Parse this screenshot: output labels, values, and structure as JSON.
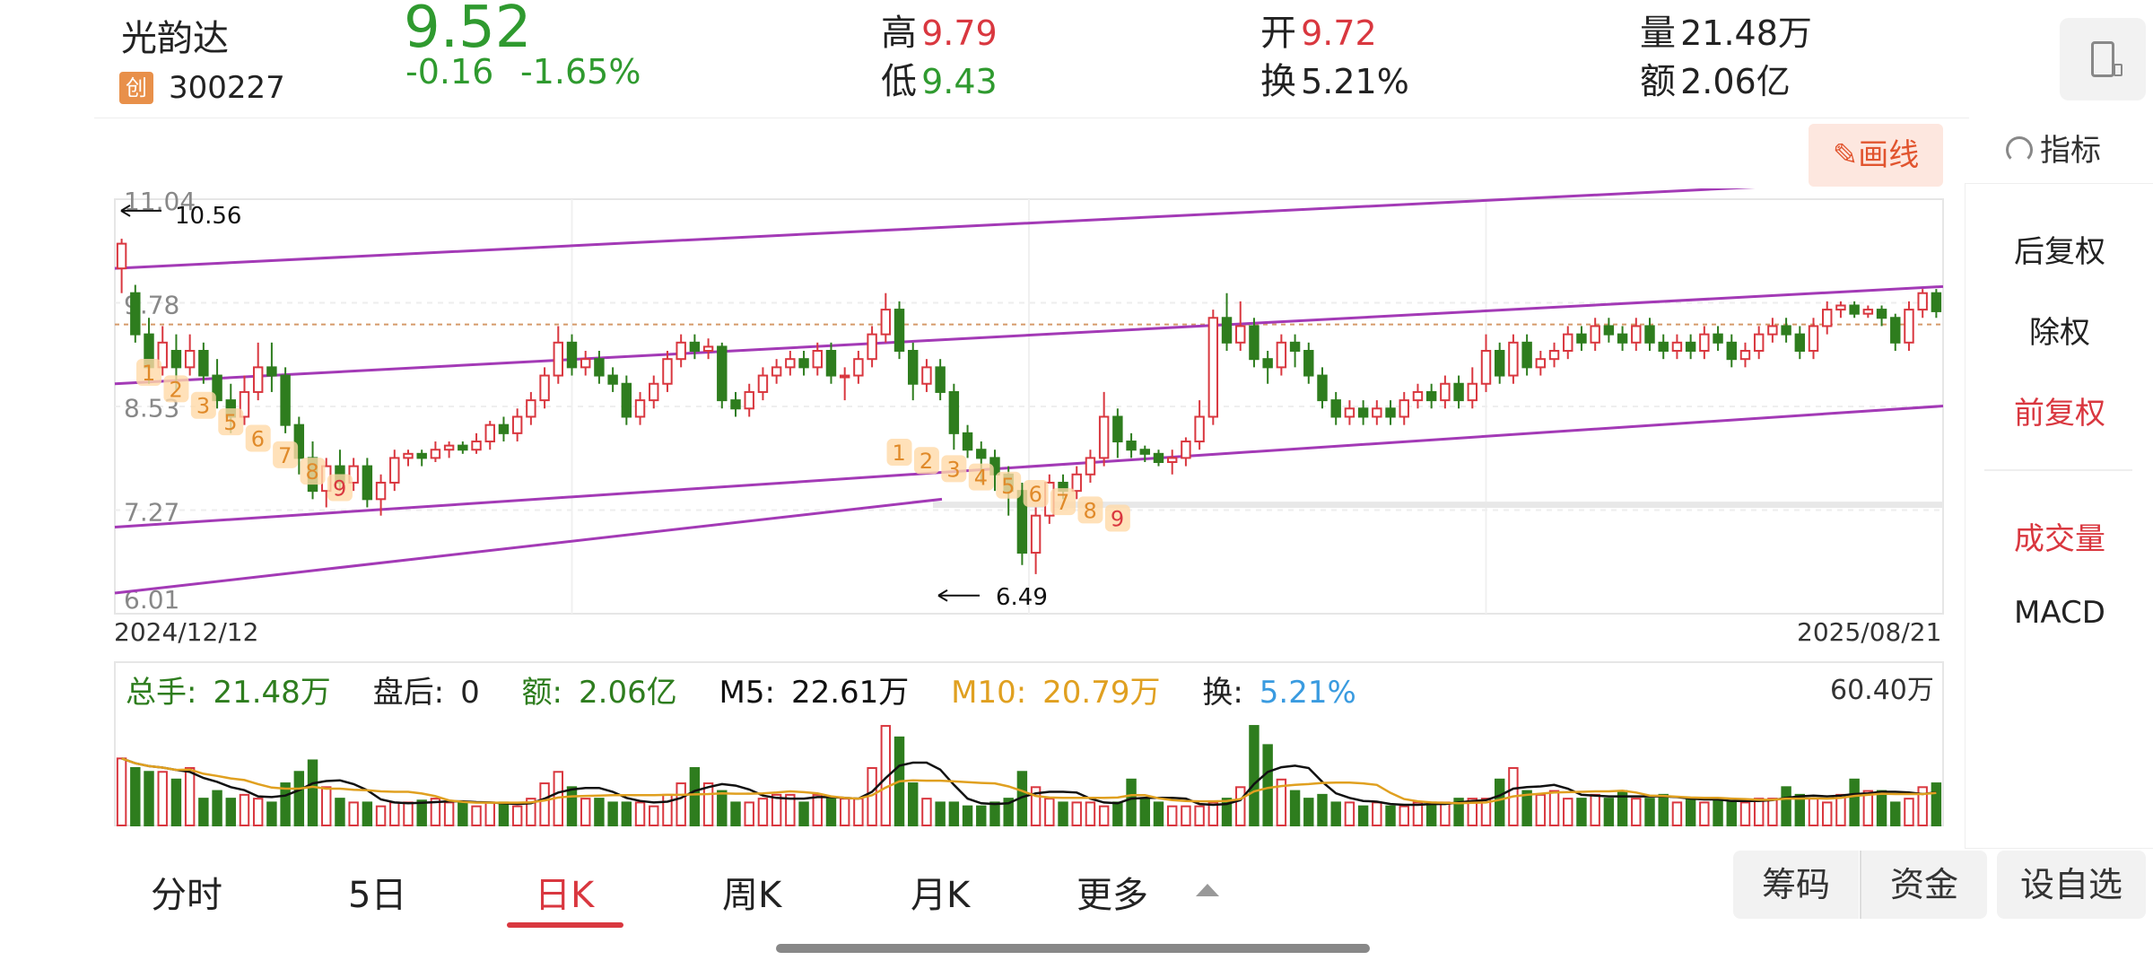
{
  "quote": {
    "name": "光韵达",
    "board_badge": "创",
    "code": "300227",
    "price": "9.52",
    "change": "-0.16",
    "change_pct": "-1.65%",
    "high_label": "高",
    "high": "9.79",
    "low_label": "低",
    "low": "9.43",
    "open_label": "开",
    "open": "9.72",
    "turnover_label": "换",
    "turnover": "5.21%",
    "volume_label": "量",
    "volume": "21.48万",
    "amount_label": "额",
    "amount": "2.06亿"
  },
  "toolbar": {
    "draw_label": "画线",
    "indicator_label": "指标"
  },
  "side_panel": {
    "items": [
      "后复权",
      "除权",
      "前复权",
      "成交量",
      "MACD"
    ],
    "active": "前复权"
  },
  "chart_data": {
    "type": "candlestick",
    "y_ticks": [
      "11.04",
      "9.78",
      "8.53",
      "7.27",
      "6.01"
    ],
    "ylim": [
      6.01,
      11.04
    ],
    "start_date": "2024/12/12",
    "end_date": "2025/08/21",
    "annotations": {
      "max": {
        "label": "10.56"
      },
      "min": {
        "label": "6.49"
      }
    },
    "current_price_line": 9.52,
    "td_sequence_labels": [
      [
        "1",
        "2",
        "3",
        "5",
        "6",
        "7",
        "8",
        "9"
      ],
      [
        "1",
        "2",
        "3",
        "4",
        "5",
        "6",
        "7",
        "8",
        "9"
      ]
    ],
    "candles": [
      [
        10.2,
        10.5,
        10.56,
        9.9
      ],
      [
        9.9,
        9.4,
        10.0,
        9.3
      ],
      [
        9.4,
        9.0,
        9.6,
        8.8
      ],
      [
        9.0,
        9.3,
        9.5,
        8.9
      ],
      [
        9.2,
        9.0,
        9.4,
        8.7
      ],
      [
        9.0,
        9.2,
        9.4,
        8.9
      ],
      [
        9.2,
        8.9,
        9.3,
        8.8
      ],
      [
        8.9,
        8.6,
        9.1,
        8.5
      ],
      [
        8.6,
        8.4,
        8.8,
        8.2
      ],
      [
        8.4,
        8.7,
        8.9,
        8.3
      ],
      [
        8.7,
        9.0,
        9.3,
        8.6
      ],
      [
        9.0,
        8.9,
        9.3,
        8.7
      ],
      [
        8.9,
        8.3,
        9.0,
        8.2
      ],
      [
        8.3,
        7.9,
        8.4,
        7.7
      ],
      [
        7.9,
        7.5,
        8.1,
        7.4
      ],
      [
        7.5,
        7.8,
        7.9,
        7.3
      ],
      [
        7.8,
        7.6,
        8.0,
        7.5
      ],
      [
        7.6,
        7.8,
        7.9,
        7.5
      ],
      [
        7.8,
        7.4,
        7.9,
        7.3
      ],
      [
        7.4,
        7.6,
        7.7,
        7.2
      ],
      [
        7.6,
        7.9,
        8.0,
        7.5
      ],
      [
        7.9,
        7.95,
        8.0,
        7.8
      ],
      [
        7.95,
        7.9,
        8.0,
        7.8
      ],
      [
        7.9,
        8.0,
        8.1,
        7.85
      ],
      [
        8.0,
        8.05,
        8.1,
        7.9
      ],
      [
        8.05,
        8.0,
        8.1,
        7.95
      ],
      [
        8.0,
        8.1,
        8.2,
        7.95
      ],
      [
        8.1,
        8.3,
        8.35,
        8.0
      ],
      [
        8.3,
        8.2,
        8.4,
        8.1
      ],
      [
        8.2,
        8.4,
        8.5,
        8.1
      ],
      [
        8.4,
        8.6,
        8.7,
        8.3
      ],
      [
        8.6,
        8.9,
        9.0,
        8.5
      ],
      [
        8.9,
        9.3,
        9.5,
        8.8
      ],
      [
        9.3,
        9.0,
        9.4,
        8.9
      ],
      [
        9.0,
        9.1,
        9.2,
        8.9
      ],
      [
        9.1,
        8.9,
        9.2,
        8.8
      ],
      [
        8.9,
        8.8,
        9.0,
        8.7
      ],
      [
        8.8,
        8.4,
        8.9,
        8.3
      ],
      [
        8.4,
        8.6,
        8.7,
        8.3
      ],
      [
        8.6,
        8.8,
        8.9,
        8.5
      ],
      [
        8.8,
        9.1,
        9.2,
        8.7
      ],
      [
        9.1,
        9.3,
        9.4,
        9.0
      ],
      [
        9.3,
        9.2,
        9.4,
        9.1
      ],
      [
        9.2,
        9.25,
        9.35,
        9.1
      ],
      [
        9.25,
        8.6,
        9.3,
        8.5
      ],
      [
        8.6,
        8.5,
        8.7,
        8.4
      ],
      [
        8.5,
        8.7,
        8.8,
        8.4
      ],
      [
        8.7,
        8.9,
        9.0,
        8.6
      ],
      [
        8.9,
        9.0,
        9.1,
        8.8
      ],
      [
        9.0,
        9.1,
        9.2,
        8.9
      ],
      [
        9.1,
        9.0,
        9.2,
        8.9
      ],
      [
        9.0,
        9.2,
        9.3,
        8.9
      ],
      [
        9.2,
        8.9,
        9.3,
        8.8
      ],
      [
        8.9,
        8.9,
        9.0,
        8.6
      ],
      [
        8.9,
        9.1,
        9.2,
        8.8
      ],
      [
        9.1,
        9.4,
        9.5,
        9.0
      ],
      [
        9.4,
        9.7,
        9.9,
        9.3
      ],
      [
        9.7,
        9.2,
        9.8,
        9.1
      ],
      [
        9.2,
        8.8,
        9.3,
        8.6
      ],
      [
        8.8,
        9.0,
        9.1,
        8.7
      ],
      [
        9.0,
        8.7,
        9.1,
        8.6
      ],
      [
        8.7,
        8.2,
        8.8,
        8.0
      ],
      [
        8.2,
        8.0,
        8.3,
        7.9
      ],
      [
        8.0,
        7.9,
        8.1,
        7.6
      ],
      [
        7.9,
        7.7,
        8.0,
        7.5
      ],
      [
        7.7,
        7.5,
        7.8,
        7.2
      ],
      [
        7.5,
        6.75,
        7.6,
        6.6
      ],
      [
        6.75,
        7.2,
        7.3,
        6.49
      ],
      [
        7.2,
        7.6,
        7.7,
        7.1
      ],
      [
        7.6,
        7.5,
        7.7,
        7.4
      ],
      [
        7.5,
        7.7,
        7.8,
        7.4
      ],
      [
        7.7,
        7.9,
        8.0,
        7.6
      ],
      [
        7.9,
        8.4,
        8.7,
        7.8
      ],
      [
        8.4,
        8.1,
        8.5,
        7.9
      ],
      [
        8.1,
        8.0,
        8.2,
        7.9
      ],
      [
        8.0,
        7.95,
        8.05,
        7.85
      ],
      [
        7.95,
        7.85,
        8.0,
        7.8
      ],
      [
        7.85,
        7.9,
        8.0,
        7.7
      ],
      [
        7.9,
        8.1,
        8.15,
        7.8
      ],
      [
        8.1,
        8.4,
        8.6,
        8.0
      ],
      [
        8.4,
        9.6,
        9.7,
        8.3
      ],
      [
        9.6,
        9.3,
        9.9,
        9.2
      ],
      [
        9.3,
        9.5,
        9.8,
        9.2
      ],
      [
        9.5,
        9.1,
        9.6,
        9.0
      ],
      [
        9.1,
        9.0,
        9.2,
        8.8
      ],
      [
        9.0,
        9.3,
        9.4,
        8.9
      ],
      [
        9.3,
        9.2,
        9.4,
        9.0
      ],
      [
        9.2,
        8.9,
        9.3,
        8.8
      ],
      [
        8.9,
        8.6,
        9.0,
        8.5
      ],
      [
        8.6,
        8.4,
        8.7,
        8.3
      ],
      [
        8.4,
        8.5,
        8.6,
        8.3
      ],
      [
        8.5,
        8.4,
        8.6,
        8.3
      ],
      [
        8.4,
        8.5,
        8.6,
        8.3
      ],
      [
        8.5,
        8.4,
        8.6,
        8.3
      ],
      [
        8.4,
        8.6,
        8.7,
        8.3
      ],
      [
        8.6,
        8.7,
        8.8,
        8.5
      ],
      [
        8.7,
        8.6,
        8.8,
        8.5
      ],
      [
        8.6,
        8.8,
        8.9,
        8.5
      ],
      [
        8.8,
        8.6,
        8.9,
        8.5
      ],
      [
        8.6,
        8.8,
        9.0,
        8.5
      ],
      [
        8.8,
        9.2,
        9.4,
        8.7
      ],
      [
        9.2,
        8.9,
        9.3,
        8.8
      ],
      [
        8.9,
        9.3,
        9.4,
        8.8
      ],
      [
        9.3,
        9.0,
        9.4,
        8.9
      ],
      [
        9.0,
        9.1,
        9.2,
        8.9
      ],
      [
        9.1,
        9.2,
        9.3,
        9.0
      ],
      [
        9.2,
        9.4,
        9.5,
        9.1
      ],
      [
        9.4,
        9.3,
        9.5,
        9.2
      ],
      [
        9.3,
        9.5,
        9.6,
        9.2
      ],
      [
        9.5,
        9.4,
        9.6,
        9.3
      ],
      [
        9.4,
        9.3,
        9.5,
        9.2
      ],
      [
        9.3,
        9.5,
        9.6,
        9.2
      ],
      [
        9.5,
        9.3,
        9.6,
        9.2
      ],
      [
        9.3,
        9.2,
        9.4,
        9.1
      ],
      [
        9.2,
        9.3,
        9.4,
        9.1
      ],
      [
        9.3,
        9.2,
        9.4,
        9.1
      ],
      [
        9.2,
        9.4,
        9.5,
        9.1
      ],
      [
        9.4,
        9.3,
        9.5,
        9.2
      ],
      [
        9.3,
        9.1,
        9.4,
        9.0
      ],
      [
        9.1,
        9.2,
        9.3,
        9.0
      ],
      [
        9.2,
        9.4,
        9.5,
        9.1
      ],
      [
        9.4,
        9.5,
        9.6,
        9.3
      ],
      [
        9.5,
        9.4,
        9.6,
        9.3
      ],
      [
        9.4,
        9.2,
        9.5,
        9.1
      ],
      [
        9.2,
        9.5,
        9.6,
        9.1
      ],
      [
        9.5,
        9.7,
        9.8,
        9.4
      ],
      [
        9.7,
        9.75,
        9.8,
        9.6
      ],
      [
        9.75,
        9.65,
        9.8,
        9.6
      ],
      [
        9.65,
        9.7,
        9.75,
        9.6
      ],
      [
        9.7,
        9.6,
        9.75,
        9.5
      ],
      [
        9.6,
        9.3,
        9.65,
        9.2
      ],
      [
        9.3,
        9.7,
        9.8,
        9.2
      ],
      [
        9.7,
        9.9,
        9.95,
        9.6
      ],
      [
        9.9,
        9.68,
        9.95,
        9.6
      ]
    ]
  },
  "volume": {
    "total_label": "总手:",
    "total": "21.48万",
    "after_label": "盘后:",
    "after": "0",
    "amount_label": "额:",
    "amount": "2.06亿",
    "m5_label": "M5:",
    "m5": "22.61万",
    "m10_label": "M10:",
    "m10": "20.79万",
    "turnover_label": "换:",
    "turnover": "5.21%",
    "max_label": "60.40万",
    "bars": [
      35,
      30,
      28,
      28,
      24,
      30,
      14,
      18,
      14,
      16,
      14,
      12,
      22,
      28,
      34,
      20,
      14,
      12,
      12,
      10,
      12,
      12,
      13,
      14,
      12,
      12,
      10,
      12,
      12,
      10,
      14,
      22,
      28,
      20,
      14,
      14,
      12,
      12,
      12,
      10,
      16,
      22,
      30,
      22,
      18,
      12,
      12,
      14,
      16,
      16,
      12,
      16,
      14,
      14,
      14,
      30,
      52,
      46,
      22,
      14,
      12,
      12,
      10,
      10,
      12,
      14,
      28,
      20,
      14,
      12,
      12,
      12,
      10,
      12,
      24,
      14,
      12,
      10,
      10,
      10,
      12,
      14,
      20,
      52,
      42,
      24,
      18,
      14,
      16,
      12,
      12,
      10,
      12,
      10,
      10,
      12,
      12,
      12,
      14,
      14,
      14,
      24,
      30,
      18,
      16,
      18,
      14,
      14,
      16,
      14,
      18,
      14,
      14,
      16,
      12,
      14,
      12,
      14,
      12,
      12,
      14,
      14,
      20,
      16,
      14,
      12,
      16,
      24,
      18,
      18,
      12,
      14,
      20,
      22,
      18
    ],
    "colors": {
      "up": "#d9373f",
      "down": "#2e7d1e",
      "m5": "#111111",
      "m10": "#e0a020"
    }
  },
  "bottom_tabs": {
    "items": [
      "分时",
      "5日",
      "日K",
      "周K",
      "月K",
      "更多"
    ],
    "active": "日K"
  },
  "bottom_buttons": {
    "chips": "筹码",
    "funds": "资金",
    "watchlist": "设自选"
  },
  "colors": {
    "up": "#d9373f",
    "down": "#2e7d1e",
    "channel": "#a33ab6",
    "accent": "#d9373f"
  }
}
